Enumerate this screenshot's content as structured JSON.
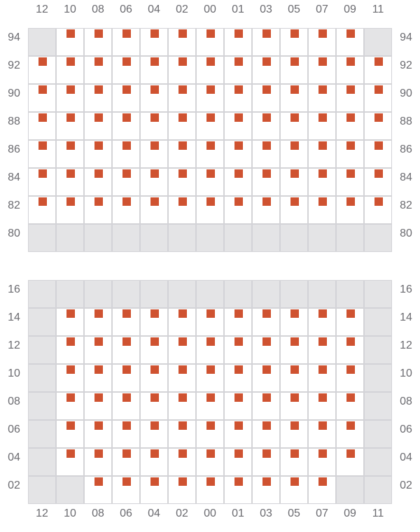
{
  "columns": [
    "12",
    "10",
    "08",
    "06",
    "04",
    "02",
    "00",
    "01",
    "03",
    "05",
    "07",
    "09",
    "11"
  ],
  "cell_key": {
    "x": "marked",
    "o": "empty",
    "-": "unavailable"
  },
  "colors": {
    "mark": "#cf5230",
    "unavailable": "#e4e4e6",
    "grid": "#d3d3d7"
  },
  "panels": [
    {
      "rows": [
        {
          "label": "94",
          "cells": "-xxxxxxxxxxx-"
        },
        {
          "label": "92",
          "cells": "xxxxxxxxxxxxx"
        },
        {
          "label": "90",
          "cells": "xxxxxxxxxxxxx"
        },
        {
          "label": "88",
          "cells": "xxxxxxxxxxxxx"
        },
        {
          "label": "86",
          "cells": "xxxxxxxxxxxxx"
        },
        {
          "label": "84",
          "cells": "xxxxxxxxxxxxx"
        },
        {
          "label": "82",
          "cells": "xxxxxxxxxxxxx"
        },
        {
          "label": "80",
          "cells": "-------------"
        }
      ]
    },
    {
      "rows": [
        {
          "label": "16",
          "cells": "-------------"
        },
        {
          "label": "14",
          "cells": "-xxxxxxxxxxx-"
        },
        {
          "label": "12",
          "cells": "-xxxxxxxxxxx-"
        },
        {
          "label": "10",
          "cells": "-xxxxxxxxxxx-"
        },
        {
          "label": "08",
          "cells": "-xxxxxxxxxxx-"
        },
        {
          "label": "06",
          "cells": "-xxxxxxxxxxx-"
        },
        {
          "label": "04",
          "cells": "-xxxxxxxxxxx-"
        },
        {
          "label": "02",
          "cells": "--xxxxxxxxx--"
        }
      ]
    }
  ]
}
